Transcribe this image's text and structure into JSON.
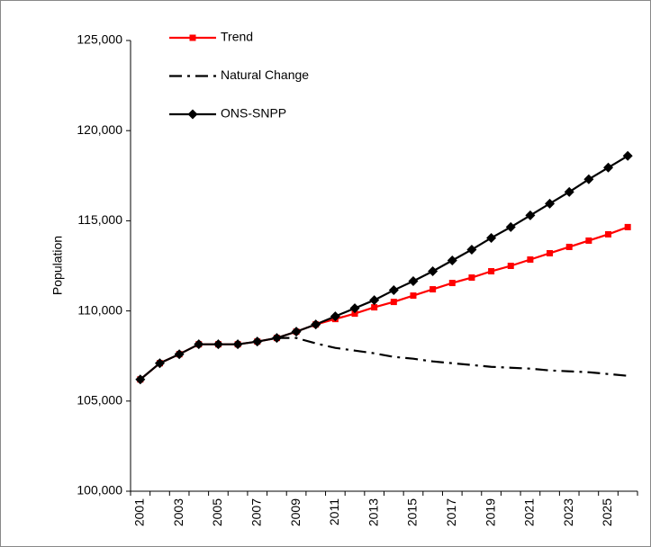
{
  "chart_data": {
    "type": "line",
    "y_label": "Population",
    "categories": [
      "2001",
      null,
      "2003",
      null,
      "2005",
      null,
      "2007",
      null,
      "2009",
      null,
      "2011",
      null,
      "2013",
      null,
      "2015",
      null,
      "2017",
      null,
      "2019",
      null,
      "2021",
      null,
      "2023",
      null,
      "2025",
      null
    ],
    "ylim": [
      100000,
      125000
    ],
    "yticks": [
      {
        "value": 100000,
        "label": "100,000"
      },
      {
        "value": 105000,
        "label": "105,000"
      },
      {
        "value": 110000,
        "label": "110,000"
      },
      {
        "value": 115000,
        "label": "115,000"
      },
      {
        "value": 120000,
        "label": "120,000"
      },
      {
        "value": 125000,
        "label": "125,000"
      }
    ],
    "legend": "top-left",
    "series": [
      {
        "name": "Trend",
        "color": "#ff0000",
        "marker": "square",
        "line": "solid",
        "values": [
          106200,
          107100,
          107600,
          108150,
          108150,
          108150,
          108300,
          108500,
          108850,
          109250,
          109550,
          109850,
          110200,
          110500,
          110850,
          111200,
          111550,
          111850,
          112200,
          112500,
          112850,
          113200,
          113550,
          113900,
          114250,
          114650
        ]
      },
      {
        "name": "Natural Change",
        "color": "#000000",
        "marker": "none",
        "line": "dashdot",
        "values": [
          null,
          null,
          null,
          null,
          null,
          null,
          null,
          108500,
          108500,
          108200,
          107950,
          107800,
          107650,
          107450,
          107350,
          107200,
          107100,
          107000,
          106900,
          106850,
          106800,
          106700,
          106650,
          106600,
          106500,
          106400
        ]
      },
      {
        "name": "ONS-SNPP",
        "color": "#000000",
        "marker": "diamond",
        "line": "solid",
        "values": [
          106200,
          107100,
          107600,
          108150,
          108150,
          108150,
          108300,
          108500,
          108850,
          109250,
          109700,
          110150,
          110600,
          111150,
          111650,
          112200,
          112800,
          113400,
          114050,
          114650,
          115300,
          115950,
          116600,
          117300,
          117950,
          118600
        ]
      }
    ]
  }
}
